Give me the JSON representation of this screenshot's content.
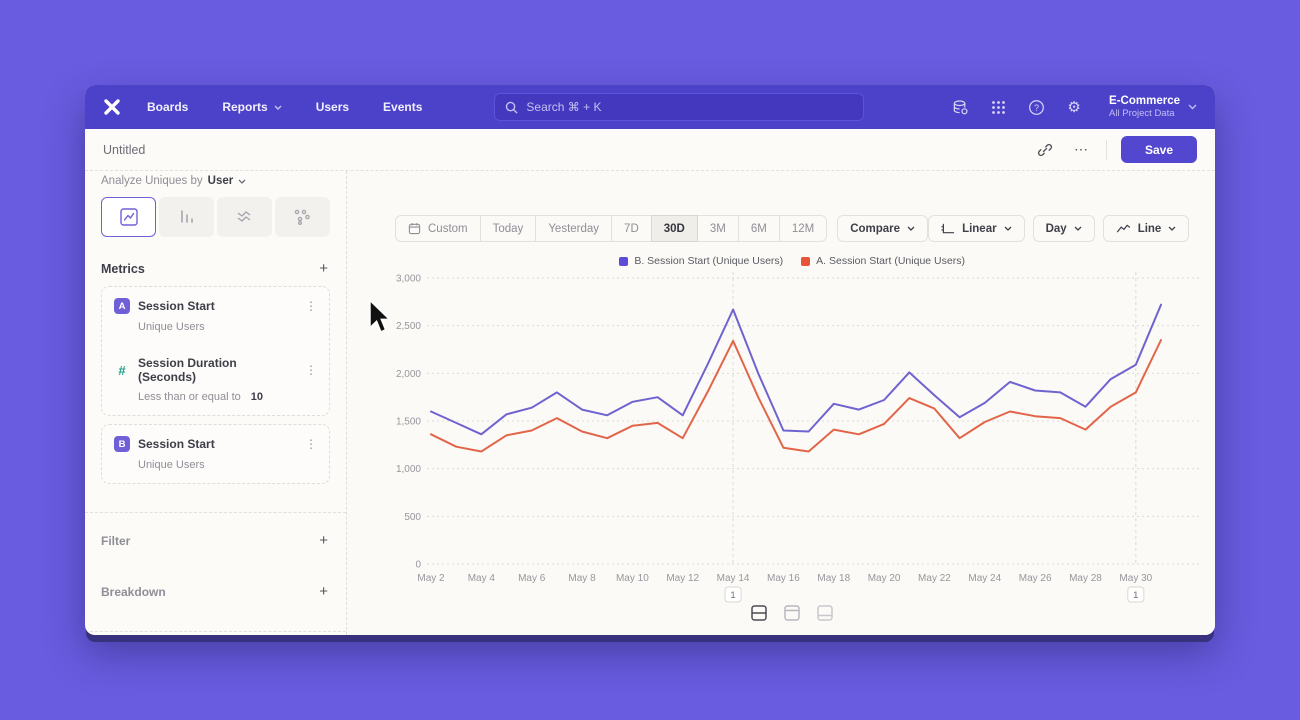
{
  "nav": {
    "menu": [
      "Boards",
      "Reports",
      "Users",
      "Events"
    ],
    "search_placeholder": "Search   ⌘ + K",
    "project_name": "E-Commerce",
    "project_subtitle": "All Project Data"
  },
  "titlebar": {
    "title": "Untitled",
    "save_label": "Save"
  },
  "icons": {
    "plus": "+",
    "kebab": "⋮",
    "ellipsis": "⋯",
    "gear": "⚙"
  },
  "sidebar": {
    "analyze_prefix": "Analyze Uniques by",
    "analyze_value": "User",
    "metrics_header": "Metrics",
    "metrics": [
      {
        "badge": "A",
        "title": "Session Start",
        "subtitle": "Unique Users"
      },
      {
        "badge": "#",
        "title": "Session Duration (Seconds)",
        "subtitle": "Less than or equal to",
        "value": "10"
      },
      {
        "badge": "B",
        "title": "Session Start",
        "subtitle": "Unique Users"
      }
    ],
    "filter_label": "Filter",
    "breakdown_label": "Breakdown"
  },
  "toolbar": {
    "ranges": [
      "Custom",
      "Today",
      "Yesterday",
      "7D",
      "30D",
      "3M",
      "6M",
      "12M"
    ],
    "active_range": "30D",
    "compare_label": "Compare",
    "scale_label": "Linear",
    "interval_label": "Day",
    "chart_type_label": "Line"
  },
  "chart_data": {
    "type": "line",
    "title": "",
    "x": [
      "May 2",
      "May 3",
      "May 4",
      "May 5",
      "May 6",
      "May 7",
      "May 8",
      "May 9",
      "May 10",
      "May 11",
      "May 12",
      "May 13",
      "May 14",
      "May 15",
      "May 16",
      "May 17",
      "May 18",
      "May 19",
      "May 20",
      "May 21",
      "May 22",
      "May 23",
      "May 24",
      "May 25",
      "May 26",
      "May 27",
      "May 28",
      "May 29",
      "May 30",
      "May 31"
    ],
    "x_label_every": 2,
    "ylim": [
      0,
      3000
    ],
    "ytick_step": 500,
    "grid": true,
    "grid_color": "#DCDAD5",
    "legend_position": "top-center",
    "series": [
      {
        "id": "B",
        "legend": "B. Session Start (Unique Users)",
        "color": "#6F63D0",
        "swatch_color": "#5A4BD8",
        "values": [
          1600,
          1480,
          1360,
          1570,
          1640,
          1800,
          1620,
          1560,
          1700,
          1750,
          1560,
          2100,
          2670,
          2000,
          1400,
          1390,
          1680,
          1620,
          1720,
          2010,
          1770,
          1540,
          1690,
          1910,
          1820,
          1800,
          1650,
          1940,
          2090,
          2720
        ]
      },
      {
        "id": "A",
        "legend": "A. Session Start (Unique Users)",
        "color": "#E2654A",
        "swatch_color": "#E8543A",
        "values": [
          1360,
          1230,
          1180,
          1350,
          1400,
          1530,
          1390,
          1320,
          1450,
          1480,
          1320,
          1810,
          2340,
          1750,
          1220,
          1180,
          1410,
          1360,
          1470,
          1740,
          1630,
          1320,
          1490,
          1600,
          1550,
          1530,
          1410,
          1650,
          1800,
          2350
        ]
      }
    ],
    "annotations": [
      {
        "index": 12,
        "label": "1"
      },
      {
        "index": 28,
        "label": "1"
      }
    ]
  }
}
